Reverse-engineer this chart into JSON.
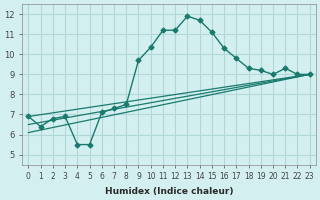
{
  "xlabel": "Humidex (Indice chaleur)",
  "ylabel": "",
  "background_color": "#d4efef",
  "grid_color": "#b0d8d8",
  "line_color": "#1a7a6e",
  "xlim": [
    -0.5,
    23.5
  ],
  "ylim": [
    4.5,
    12.5
  ],
  "xticks": [
    0,
    1,
    2,
    3,
    4,
    5,
    6,
    7,
    8,
    9,
    10,
    11,
    12,
    13,
    14,
    15,
    16,
    17,
    18,
    19,
    20,
    21,
    22,
    23
  ],
  "yticks": [
    5,
    6,
    7,
    8,
    9,
    10,
    11,
    12
  ],
  "series": [
    {
      "x": [
        0,
        1,
        2,
        3,
        4,
        5,
        6,
        7,
        8,
        9,
        10,
        11,
        12,
        13,
        14,
        15,
        16,
        17,
        18,
        19,
        20,
        21,
        22,
        23
      ],
      "y": [
        6.9,
        6.4,
        6.8,
        6.9,
        5.5,
        5.5,
        7.1,
        7.3,
        7.5,
        9.7,
        10.35,
        11.2,
        11.2,
        11.9,
        11.7,
        11.1,
        10.3,
        9.8,
        9.3,
        9.2,
        9.0,
        9.3,
        9.0,
        9.0
      ]
    },
    {
      "x": [
        0,
        23
      ],
      "y": [
        6.9,
        9.0
      ]
    },
    {
      "x": [
        0,
        23
      ],
      "y": [
        6.5,
        9.0
      ]
    },
    {
      "x": [
        0,
        23
      ],
      "y": [
        6.1,
        9.0
      ]
    }
  ]
}
